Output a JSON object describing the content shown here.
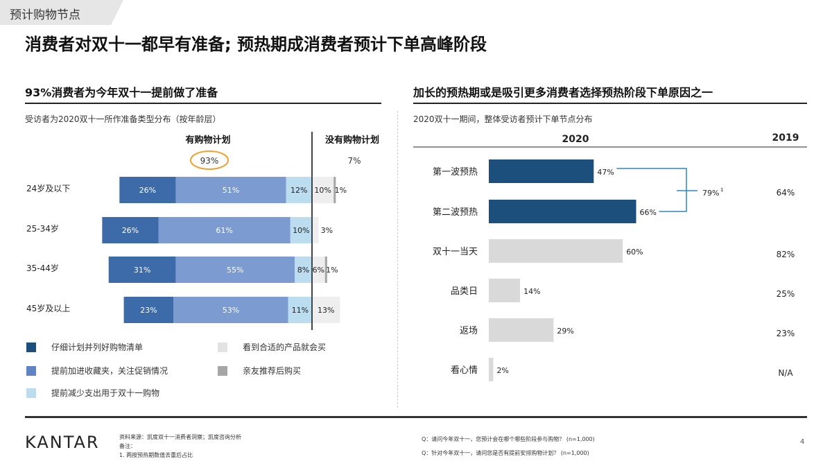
{
  "section_tag": "预计购物节点",
  "title": "消费者对双十一都早有准备; 预热期成消费者预计下单高峰阶段",
  "left_panel": {
    "title": "93%消费者为今年双十一提前做了准备",
    "subtitle": "受访者为2020双十一所作准备类型分布（按年龄层）",
    "group_with_plan": "有购物计划",
    "group_without_plan": "没有购物计划",
    "with_plan_total": "93%",
    "without_plan_total": "7%"
  },
  "right_panel": {
    "title": "加长的预热期或是吸引更多消费者选择预热阶段下单原因之一",
    "subtitle": "2020双十一期间，整体受访者预计下单节点分布",
    "col_2020": "2020",
    "col_2019": "2019",
    "bracket_total": "79%",
    "bracket_note": "1"
  },
  "chart_data": [
    {
      "type": "bar",
      "orientation": "horizontal",
      "stacked": true,
      "categories": [
        "24岁及以下",
        "25-34岁",
        "35-44岁",
        "45岁及以上"
      ],
      "series": [
        {
          "name": "仔细计划并列好购物清单",
          "color": "#3d6aa8",
          "values": [
            26,
            26,
            31,
            23
          ],
          "labels": [
            "26%",
            "26%",
            "31%",
            "23%"
          ]
        },
        {
          "name": "提前加进收藏夹，关注促销情况",
          "color": "#7b9bd1",
          "values": [
            51,
            61,
            55,
            53
          ],
          "labels": [
            "51%",
            "61%",
            "55%",
            "53%"
          ]
        },
        {
          "name": "提前减少支出用于双十一购物",
          "color": "#bcdcf0",
          "values": [
            12,
            10,
            8,
            11
          ],
          "labels": [
            "12%",
            "10%",
            "8%",
            "11%"
          ]
        },
        {
          "name": "看到合适的产品就会买",
          "color": "#eeeeee",
          "values": [
            10,
            3,
            6,
            13
          ],
          "labels": [
            "10%",
            "3%",
            "6%",
            "13%"
          ]
        },
        {
          "name": "亲友推荐后购买",
          "color": "#a6a6a6",
          "values": [
            1,
            0,
            1,
            0
          ],
          "labels": [
            "1%",
            "",
            "1%",
            ""
          ]
        }
      ]
    },
    {
      "type": "bar",
      "orientation": "horizontal",
      "categories": [
        "第一波预热",
        "第二波预热",
        "双十一当天",
        "品类日",
        "返场",
        "看心情"
      ],
      "series": [
        {
          "name": "2020",
          "values": [
            47,
            66,
            60,
            14,
            29,
            2
          ],
          "labels": [
            "47%",
            "66%",
            "60%",
            "14%",
            "29%",
            "2%"
          ]
        }
      ],
      "comparison_2019": [
        "64%",
        "",
        "82%",
        "25%",
        "23%",
        "N/A"
      ],
      "colors": {
        "highlight": "#1d4f7c",
        "default": "#d9d9d9",
        "bracket": "#2e86c1"
      }
    }
  ],
  "legend_items": [
    {
      "label": "仔细计划并列好购物清单",
      "color": "#1d4f7c"
    },
    {
      "label": "提前加进收藏夹，关注促销情况",
      "color": "#5f84c6"
    },
    {
      "label": "提前减少支出用于双十一购物",
      "color": "#bcdcf0"
    },
    {
      "label": "看到合适的产品就会买",
      "color": "#e3e3e3"
    },
    {
      "label": "亲友推荐后购买",
      "color": "#a6a6a6"
    }
  ],
  "footer": {
    "logo": "KANTAR",
    "source": "资料来源：凯度双十一消费者洞察；凯度咨询分析",
    "notes_label": "备注：",
    "note_1": "1.   两按预热期数值去重后占比",
    "q1": "Q：请问今年双十一，您预计会在哪个哪些阶段参与购物？ (n=1,000)",
    "q2": "Q：针对今年双十一，请问您是否有提前安排购物计划？ (n=1,000)",
    "page": "4"
  }
}
